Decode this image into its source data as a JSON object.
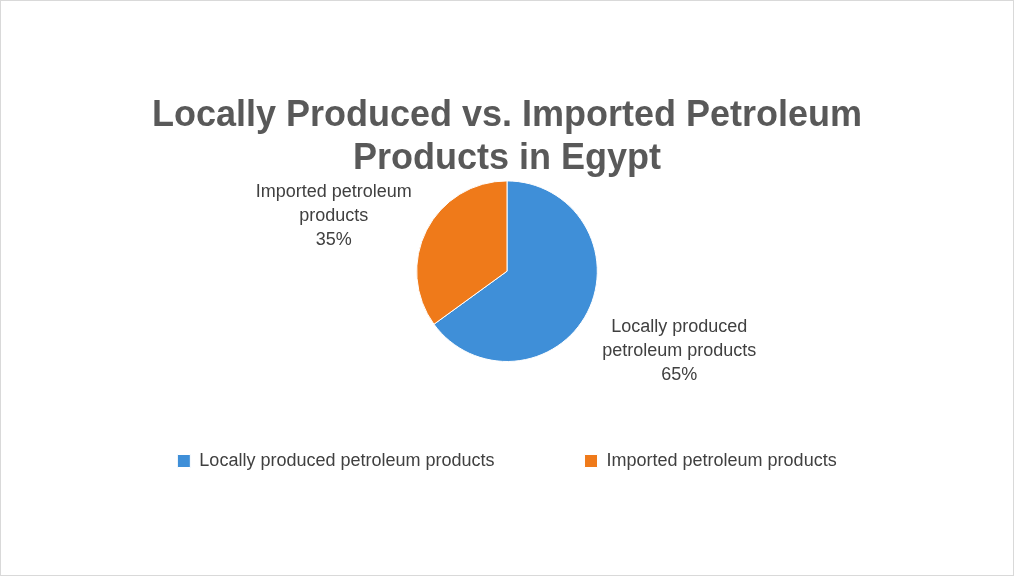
{
  "chart_data": {
    "type": "pie",
    "title": "Locally Produced vs. Imported Petroleum Products in Egypt",
    "categories": [
      "Locally produced petroleum products",
      "Imported petroleum products"
    ],
    "values": [
      65,
      35
    ],
    "colors": [
      "#3f8fd8",
      "#ef7a1a"
    ],
    "value_labels": [
      "65%",
      "35%"
    ],
    "legend": "bottom"
  }
}
